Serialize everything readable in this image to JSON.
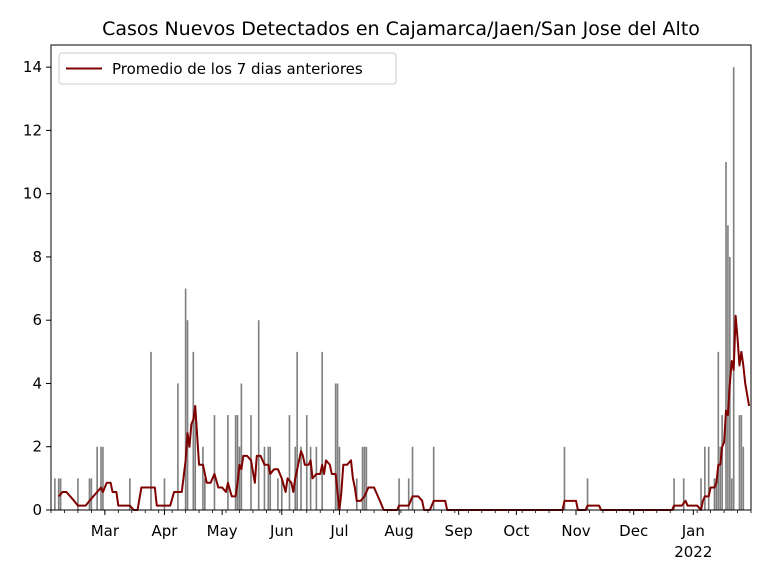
{
  "chart_data": {
    "type": "bar",
    "title": "Casos Nuevos Detectados en Cajamarca/Jaen/San Jose del Alto",
    "xlabel": "",
    "ylabel": "",
    "ylim": [
      0,
      14.7
    ],
    "yticks": [
      0,
      2,
      4,
      6,
      8,
      10,
      12,
      14
    ],
    "xlim": [
      "2021-02-01",
      "2022-01-31"
    ],
    "xticks": [
      {
        "date": "2021-03-01",
        "label": "Mar"
      },
      {
        "date": "2021-04-01",
        "label": "Apr"
      },
      {
        "date": "2021-05-01",
        "label": "May"
      },
      {
        "date": "2021-06-01",
        "label": "Jun"
      },
      {
        "date": "2021-07-01",
        "label": "Jul"
      },
      {
        "date": "2021-08-01",
        "label": "Aug"
      },
      {
        "date": "2021-09-01",
        "label": "Sep"
      },
      {
        "date": "2021-10-01",
        "label": "Oct"
      },
      {
        "date": "2021-11-01",
        "label": "Nov"
      },
      {
        "date": "2021-12-01",
        "label": "Dec"
      },
      {
        "date": "2022-01-01",
        "label": "Jan"
      }
    ],
    "year_label": "2022",
    "legend": {
      "placement": "top-left",
      "entries": [
        "Promedio de los 7 dias anteriores"
      ]
    },
    "colors": {
      "bars": "#808080",
      "line": "#800000"
    },
    "series": [
      {
        "type": "bar",
        "points": [
          [
            "2021-02-03",
            1
          ],
          [
            "2021-02-05",
            1
          ],
          [
            "2021-02-06",
            1
          ],
          [
            "2021-02-15",
            1
          ],
          [
            "2021-02-21",
            1
          ],
          [
            "2021-02-22",
            1
          ],
          [
            "2021-02-25",
            2
          ],
          [
            "2021-02-27",
            2
          ],
          [
            "2021-02-28",
            2
          ],
          [
            "2021-03-14",
            1
          ],
          [
            "2021-03-25",
            5
          ],
          [
            "2021-04-01",
            1
          ],
          [
            "2021-04-08",
            4
          ],
          [
            "2021-04-12",
            7
          ],
          [
            "2021-04-13",
            6
          ],
          [
            "2021-04-16",
            5
          ],
          [
            "2021-04-17",
            3
          ],
          [
            "2021-04-21",
            2
          ],
          [
            "2021-04-22",
            1
          ],
          [
            "2021-04-27",
            3
          ],
          [
            "2021-05-04",
            3
          ],
          [
            "2021-05-08",
            3
          ],
          [
            "2021-05-09",
            3
          ],
          [
            "2021-05-10",
            2
          ],
          [
            "2021-05-11",
            4
          ],
          [
            "2021-05-16",
            3
          ],
          [
            "2021-05-20",
            6
          ],
          [
            "2021-05-23",
            2
          ],
          [
            "2021-05-25",
            2
          ],
          [
            "2021-05-26",
            2
          ],
          [
            "2021-05-30",
            1
          ],
          [
            "2021-06-01",
            1
          ],
          [
            "2021-06-05",
            3
          ],
          [
            "2021-06-08",
            2
          ],
          [
            "2021-06-09",
            5
          ],
          [
            "2021-06-11",
            2
          ],
          [
            "2021-06-14",
            3
          ],
          [
            "2021-06-16",
            2
          ],
          [
            "2021-06-19",
            2
          ],
          [
            "2021-06-22",
            5
          ],
          [
            "2021-06-29",
            4
          ],
          [
            "2021-06-30",
            4
          ],
          [
            "2021-07-01",
            2
          ],
          [
            "2021-07-10",
            1
          ],
          [
            "2021-07-13",
            2
          ],
          [
            "2021-07-14",
            2
          ],
          [
            "2021-07-15",
            2
          ],
          [
            "2021-08-01",
            1
          ],
          [
            "2021-08-06",
            1
          ],
          [
            "2021-08-08",
            2
          ],
          [
            "2021-08-19",
            2
          ],
          [
            "2021-10-26",
            2
          ],
          [
            "2021-11-07",
            1
          ],
          [
            "2021-12-22",
            1
          ],
          [
            "2021-12-27",
            1
          ],
          [
            "2022-01-05",
            1
          ],
          [
            "2022-01-07",
            2
          ],
          [
            "2022-01-09",
            2
          ],
          [
            "2022-01-12",
            1
          ],
          [
            "2022-01-13",
            1
          ],
          [
            "2022-01-14",
            5
          ],
          [
            "2022-01-15",
            2
          ],
          [
            "2022-01-16",
            3
          ],
          [
            "2022-01-18",
            11
          ],
          [
            "2022-01-19",
            9
          ],
          [
            "2022-01-20",
            8
          ],
          [
            "2022-01-21",
            1
          ],
          [
            "2022-01-22",
            14
          ],
          [
            "2022-01-25",
            3
          ],
          [
            "2022-01-26",
            3
          ],
          [
            "2022-01-27",
            2
          ]
        ]
      },
      {
        "type": "line",
        "name": "Promedio de los 7 dias anteriores",
        "points": [
          [
            "2021-02-05",
            0.43
          ],
          [
            "2021-02-07",
            0.57
          ],
          [
            "2021-02-09",
            0.57
          ],
          [
            "2021-02-11",
            0.43
          ],
          [
            "2021-02-13",
            0.29
          ],
          [
            "2021-02-15",
            0.14
          ],
          [
            "2021-02-19",
            0.14
          ],
          [
            "2021-02-21",
            0.29
          ],
          [
            "2021-02-23",
            0.43
          ],
          [
            "2021-02-25",
            0.57
          ],
          [
            "2021-02-27",
            0.71
          ],
          [
            "2021-02-28",
            0.57
          ],
          [
            "2021-03-02",
            0.86
          ],
          [
            "2021-03-04",
            0.86
          ],
          [
            "2021-03-05",
            0.57
          ],
          [
            "2021-03-07",
            0.57
          ],
          [
            "2021-03-08",
            0.14
          ],
          [
            "2021-03-14",
            0.14
          ],
          [
            "2021-03-16",
            0.0
          ],
          [
            "2021-03-18",
            0.0
          ],
          [
            "2021-03-20",
            0.71
          ],
          [
            "2021-03-27",
            0.71
          ],
          [
            "2021-03-28",
            0.14
          ],
          [
            "2021-04-04",
            0.14
          ],
          [
            "2021-04-06",
            0.57
          ],
          [
            "2021-04-10",
            0.57
          ],
          [
            "2021-04-12",
            1.57
          ],
          [
            "2021-04-13",
            2.43
          ],
          [
            "2021-04-14",
            2.0
          ],
          [
            "2021-04-15",
            2.71
          ],
          [
            "2021-04-16",
            2.86
          ],
          [
            "2021-04-17",
            3.29
          ],
          [
            "2021-04-19",
            1.43
          ],
          [
            "2021-04-21",
            1.43
          ],
          [
            "2021-04-23",
            0.86
          ],
          [
            "2021-04-25",
            0.86
          ],
          [
            "2021-04-27",
            1.14
          ],
          [
            "2021-04-29",
            0.71
          ],
          [
            "2021-05-01",
            0.71
          ],
          [
            "2021-05-03",
            0.57
          ],
          [
            "2021-05-04",
            0.86
          ],
          [
            "2021-05-06",
            0.43
          ],
          [
            "2021-05-08",
            0.43
          ],
          [
            "2021-05-09",
            0.86
          ],
          [
            "2021-05-10",
            1.43
          ],
          [
            "2021-05-11",
            1.29
          ],
          [
            "2021-05-12",
            1.71
          ],
          [
            "2021-05-14",
            1.71
          ],
          [
            "2021-05-16",
            1.57
          ],
          [
            "2021-05-18",
            0.86
          ],
          [
            "2021-05-19",
            1.71
          ],
          [
            "2021-05-21",
            1.71
          ],
          [
            "2021-05-23",
            1.43
          ],
          [
            "2021-05-25",
            1.43
          ],
          [
            "2021-05-26",
            1.14
          ],
          [
            "2021-05-28",
            1.29
          ],
          [
            "2021-05-30",
            1.29
          ],
          [
            "2021-06-01",
            1.0
          ],
          [
            "2021-06-03",
            0.57
          ],
          [
            "2021-06-04",
            1.0
          ],
          [
            "2021-06-06",
            0.86
          ],
          [
            "2021-06-07",
            0.57
          ],
          [
            "2021-06-08",
            1.0
          ],
          [
            "2021-06-10",
            1.57
          ],
          [
            "2021-06-11",
            1.86
          ],
          [
            "2021-06-12",
            1.71
          ],
          [
            "2021-06-13",
            1.43
          ],
          [
            "2021-06-15",
            1.43
          ],
          [
            "2021-06-16",
            1.57
          ],
          [
            "2021-06-17",
            1.0
          ],
          [
            "2021-06-19",
            1.14
          ],
          [
            "2021-06-21",
            1.14
          ],
          [
            "2021-06-22",
            1.43
          ],
          [
            "2021-06-23",
            1.14
          ],
          [
            "2021-06-24",
            1.57
          ],
          [
            "2021-06-26",
            1.43
          ],
          [
            "2021-06-27",
            1.14
          ],
          [
            "2021-06-29",
            1.14
          ],
          [
            "2021-06-30",
            0.57
          ],
          [
            "2021-07-01",
            0.0
          ],
          [
            "2021-07-02",
            0.57
          ],
          [
            "2021-07-03",
            1.43
          ],
          [
            "2021-07-05",
            1.43
          ],
          [
            "2021-07-07",
            1.57
          ],
          [
            "2021-07-08",
            1.0
          ],
          [
            "2021-07-09",
            0.71
          ],
          [
            "2021-07-10",
            0.29
          ],
          [
            "2021-07-12",
            0.29
          ],
          [
            "2021-07-14",
            0.43
          ],
          [
            "2021-07-16",
            0.71
          ],
          [
            "2021-07-19",
            0.71
          ],
          [
            "2021-07-21",
            0.43
          ],
          [
            "2021-07-22",
            0.29
          ],
          [
            "2021-07-24",
            0.0
          ],
          [
            "2021-07-31",
            0.0
          ],
          [
            "2021-08-01",
            0.14
          ],
          [
            "2021-08-06",
            0.14
          ],
          [
            "2021-08-07",
            0.29
          ],
          [
            "2021-08-08",
            0.43
          ],
          [
            "2021-08-11",
            0.43
          ],
          [
            "2021-08-13",
            0.29
          ],
          [
            "2021-08-14",
            0.0
          ],
          [
            "2021-08-17",
            0.0
          ],
          [
            "2021-08-19",
            0.29
          ],
          [
            "2021-08-25",
            0.29
          ],
          [
            "2021-08-26",
            0.0
          ],
          [
            "2021-10-25",
            0.0
          ],
          [
            "2021-10-26",
            0.29
          ],
          [
            "2021-11-01",
            0.29
          ],
          [
            "2021-11-02",
            0.0
          ],
          [
            "2021-11-06",
            0.0
          ],
          [
            "2021-11-07",
            0.14
          ],
          [
            "2021-11-13",
            0.14
          ],
          [
            "2021-11-14",
            0.0
          ],
          [
            "2021-12-21",
            0.0
          ],
          [
            "2021-12-22",
            0.14
          ],
          [
            "2021-12-26",
            0.14
          ],
          [
            "2021-12-28",
            0.29
          ],
          [
            "2021-12-29",
            0.14
          ],
          [
            "2022-01-03",
            0.14
          ],
          [
            "2022-01-05",
            0.0
          ],
          [
            "2022-01-06",
            0.29
          ],
          [
            "2022-01-07",
            0.43
          ],
          [
            "2022-01-09",
            0.43
          ],
          [
            "2022-01-10",
            0.71
          ],
          [
            "2022-01-12",
            0.71
          ],
          [
            "2022-01-13",
            0.86
          ],
          [
            "2022-01-14",
            1.43
          ],
          [
            "2022-01-15",
            1.43
          ],
          [
            "2022-01-16",
            2.0
          ],
          [
            "2022-01-17",
            2.14
          ],
          [
            "2022-01-18",
            3.14
          ],
          [
            "2022-01-19",
            3.0
          ],
          [
            "2022-01-20",
            4.0
          ],
          [
            "2022-01-21",
            4.71
          ],
          [
            "2022-01-22",
            4.43
          ],
          [
            "2022-01-23",
            6.14
          ],
          [
            "2022-01-24",
            5.43
          ],
          [
            "2022-01-25",
            4.57
          ],
          [
            "2022-01-26",
            5.0
          ],
          [
            "2022-01-27",
            4.57
          ],
          [
            "2022-01-28",
            4.0
          ],
          [
            "2022-01-30",
            3.29
          ]
        ]
      }
    ]
  }
}
